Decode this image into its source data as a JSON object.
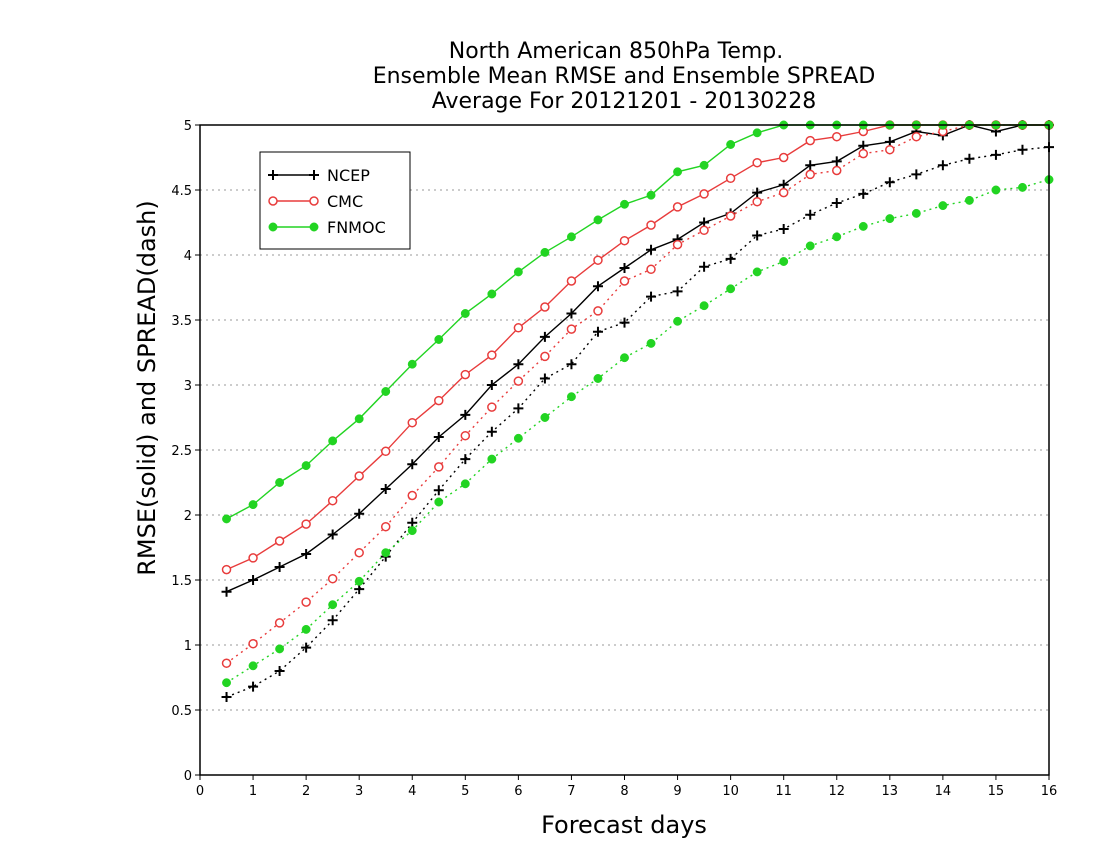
{
  "chart_data": {
    "type": "line",
    "title_lines": [
      "North American 850hPa Temp.",
      "Ensemble Mean RMSE and Ensemble SPREAD",
      "Average For 20121201 - 20130228"
    ],
    "xlabel": "Forecast days",
    "ylabel": "RMSE(solid) and SPREAD(dash)",
    "xlim": [
      0,
      16
    ],
    "ylim": [
      0,
      5
    ],
    "x_ticks": [
      "0",
      "1",
      "2",
      "3",
      "4",
      "5",
      "6",
      "7",
      "8",
      "9",
      "10",
      "11",
      "12",
      "13",
      "14",
      "15",
      "16"
    ],
    "y_ticks": [
      "0",
      "0.5",
      "1",
      "1.5",
      "2",
      "2.5",
      "3",
      "3.5",
      "4",
      "4.5",
      "5"
    ],
    "grid": "horizontal-dotted",
    "legend_position": "top-left",
    "x": [
      0.5,
      1,
      1.5,
      2,
      2.5,
      3,
      3.5,
      4,
      4.5,
      5,
      5.5,
      6,
      6.5,
      7,
      7.5,
      8,
      8.5,
      9,
      9.5,
      10,
      10.5,
      11,
      11.5,
      12,
      12.5,
      13,
      13.5,
      14,
      14.5,
      15,
      15.5,
      16
    ],
    "series": [
      {
        "name": "NCEP",
        "color": "#000000",
        "marker": "plus",
        "rmse": [
          1.41,
          1.5,
          1.6,
          1.7,
          1.85,
          2.01,
          2.2,
          2.39,
          2.6,
          2.77,
          3.0,
          3.16,
          3.37,
          3.55,
          3.76,
          3.9,
          4.04,
          4.12,
          4.25,
          4.32,
          4.48,
          4.54,
          4.69,
          4.72,
          4.84,
          4.87,
          4.95,
          4.92,
          5.01,
          4.95,
          5.02,
          5.0
        ],
        "spread": [
          0.6,
          0.68,
          0.8,
          0.98,
          1.19,
          1.43,
          1.68,
          1.94,
          2.19,
          2.43,
          2.64,
          2.82,
          3.05,
          3.16,
          3.41,
          3.48,
          3.68,
          3.72,
          3.91,
          3.97,
          4.15,
          4.2,
          4.31,
          4.4,
          4.47,
          4.56,
          4.62,
          4.69,
          4.74,
          4.77,
          4.81,
          4.83
        ]
      },
      {
        "name": "CMC",
        "color": "#e83c3c",
        "marker": "circle",
        "rmse": [
          1.58,
          1.67,
          1.8,
          1.93,
          2.11,
          2.3,
          2.49,
          2.71,
          2.88,
          3.08,
          3.23,
          3.44,
          3.6,
          3.8,
          3.96,
          4.11,
          4.23,
          4.37,
          4.47,
          4.59,
          4.71,
          4.75,
          4.88,
          4.91,
          4.95,
          5.0,
          5.0,
          5.0,
          5.0,
          5.0,
          5.0,
          5.0
        ],
        "spread": [
          0.86,
          1.01,
          1.17,
          1.33,
          1.51,
          1.71,
          1.91,
          2.15,
          2.37,
          2.61,
          2.83,
          3.03,
          3.22,
          3.43,
          3.57,
          3.8,
          3.89,
          4.08,
          4.19,
          4.3,
          4.41,
          4.48,
          4.62,
          4.65,
          4.78,
          4.81,
          4.91,
          4.95,
          5.0,
          5.0,
          5.0,
          5.0
        ]
      },
      {
        "name": "FNMOC",
        "color": "#22d422",
        "marker": "dot",
        "rmse": [
          1.97,
          2.08,
          2.25,
          2.38,
          2.57,
          2.74,
          2.95,
          3.16,
          3.35,
          3.55,
          3.7,
          3.87,
          4.02,
          4.14,
          4.27,
          4.39,
          4.46,
          4.64,
          4.69,
          4.85,
          4.94,
          5.0,
          5.0,
          5.0,
          5.0,
          5.0,
          5.0,
          5.0,
          5.0,
          5.0,
          5.0,
          5.0
        ],
        "spread": [
          0.71,
          0.84,
          0.97,
          1.12,
          1.31,
          1.49,
          1.71,
          1.88,
          2.1,
          2.24,
          2.43,
          2.59,
          2.75,
          2.91,
          3.05,
          3.21,
          3.32,
          3.49,
          3.61,
          3.74,
          3.87,
          3.95,
          4.07,
          4.14,
          4.22,
          4.28,
          4.32,
          4.38,
          4.42,
          4.5,
          4.52,
          4.58
        ]
      }
    ]
  }
}
